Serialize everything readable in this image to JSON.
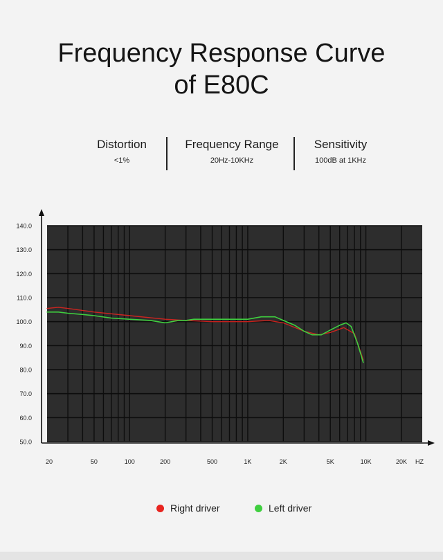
{
  "header": {
    "title_line1": "Frequency Response Curve",
    "title_line2": "of E80C"
  },
  "specs": [
    {
      "label": "Distortion",
      "value": "<1%"
    },
    {
      "label": "Frequency Range",
      "value": "20Hz-10KHz"
    },
    {
      "label": "Sensitivity",
      "value": "100dB at 1KHz"
    }
  ],
  "legend": {
    "right_label": "Right driver",
    "left_label": "Left driver"
  },
  "chart_data": {
    "type": "line",
    "title": "",
    "xlabel": "HZ",
    "ylabel": "",
    "x_scale": "log",
    "xlim": [
      20,
      30000
    ],
    "ylim": [
      50,
      140
    ],
    "grid": true,
    "background": "#2d2d2d",
    "x_ticks": [
      {
        "value": 20,
        "label": "20"
      },
      {
        "value": 50,
        "label": "50"
      },
      {
        "value": 100,
        "label": "100"
      },
      {
        "value": 200,
        "label": "200"
      },
      {
        "value": 500,
        "label": "500"
      },
      {
        "value": 1000,
        "label": "1K"
      },
      {
        "value": 2000,
        "label": "2K"
      },
      {
        "value": 5000,
        "label": "5K"
      },
      {
        "value": 10000,
        "label": "10K"
      },
      {
        "value": 20000,
        "label": "20K"
      }
    ],
    "y_ticks": [
      {
        "value": 140,
        "label": "140.0"
      },
      {
        "value": 130,
        "label": "130.0"
      },
      {
        "value": 120,
        "label": "120.0"
      },
      {
        "value": 110,
        "label": "110.0"
      },
      {
        "value": 100,
        "label": "100.0"
      },
      {
        "value": 90,
        "label": "90.0"
      },
      {
        "value": 80,
        "label": "80.0"
      },
      {
        "value": 70,
        "label": "70.0"
      },
      {
        "value": 60,
        "label": "60.0"
      },
      {
        "value": 50,
        "label": "50.0"
      }
    ],
    "series": [
      {
        "name": "Right driver",
        "color": "#e8241f",
        "points": [
          [
            20,
            105.5
          ],
          [
            25,
            106
          ],
          [
            30,
            105.5
          ],
          [
            50,
            104
          ],
          [
            100,
            102.5
          ],
          [
            200,
            101
          ],
          [
            300,
            100.5
          ],
          [
            500,
            100
          ],
          [
            1000,
            100
          ],
          [
            1500,
            100.5
          ],
          [
            2000,
            99.5
          ],
          [
            3000,
            96
          ],
          [
            4000,
            94.5
          ],
          [
            5000,
            95.5
          ],
          [
            6500,
            97.5
          ],
          [
            8000,
            95
          ],
          [
            9500,
            84
          ]
        ]
      },
      {
        "name": "Left driver",
        "color": "#3fcf3f",
        "points": [
          [
            20,
            104
          ],
          [
            25,
            104
          ],
          [
            30,
            103.5
          ],
          [
            40,
            103
          ],
          [
            50,
            102.5
          ],
          [
            70,
            101.5
          ],
          [
            100,
            101
          ],
          [
            150,
            100.5
          ],
          [
            200,
            99.5
          ],
          [
            260,
            100.5
          ],
          [
            300,
            100.5
          ],
          [
            350,
            101
          ],
          [
            500,
            101
          ],
          [
            700,
            101
          ],
          [
            1000,
            101
          ],
          [
            1300,
            102
          ],
          [
            1700,
            102
          ],
          [
            2000,
            100.5
          ],
          [
            2500,
            98.5
          ],
          [
            3000,
            96
          ],
          [
            3500,
            94.5
          ],
          [
            4200,
            94.5
          ],
          [
            5000,
            96.5
          ],
          [
            6000,
            98.5
          ],
          [
            6800,
            99.5
          ],
          [
            7500,
            98
          ],
          [
            8500,
            91
          ],
          [
            9500,
            83
          ]
        ]
      }
    ]
  }
}
